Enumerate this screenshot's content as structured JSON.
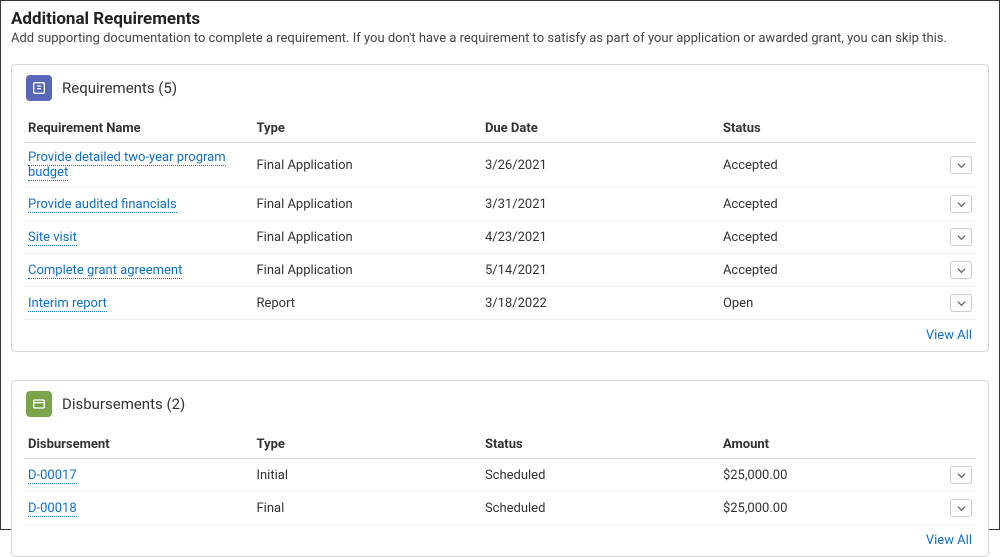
{
  "header": {
    "title": "Additional Requirements",
    "description": "Add supporting documentation to complete a requirement. If you don't have a requirement to satisfy as part of your application or awarded grant, you can skip this."
  },
  "requirements": {
    "title": "Requirements (5)",
    "columns": {
      "name": "Requirement Name",
      "type": "Type",
      "due": "Due Date",
      "status": "Status"
    },
    "rows": [
      {
        "name": "Provide detailed two-year program budget",
        "type": "Final Application",
        "due": "3/26/2021",
        "status": "Accepted"
      },
      {
        "name": "Provide audited financials",
        "type": "Final Application",
        "due": "3/31/2021",
        "status": "Accepted"
      },
      {
        "name": "Site visit",
        "type": "Final Application",
        "due": "4/23/2021",
        "status": "Accepted"
      },
      {
        "name": "Complete grant agreement",
        "type": "Final Application",
        "due": "5/14/2021",
        "status": "Accepted"
      },
      {
        "name": "Interim report",
        "type": "Report",
        "due": "3/18/2022",
        "status": "Open"
      }
    ],
    "view_all": "View All"
  },
  "disbursements": {
    "title": "Disbursements (2)",
    "columns": {
      "name": "Disbursement",
      "type": "Type",
      "status": "Status",
      "amount": "Amount"
    },
    "rows": [
      {
        "name": "D-00017",
        "type": "Initial",
        "status": "Scheduled",
        "amount": "$25,000.00"
      },
      {
        "name": "D-00018",
        "type": "Final",
        "status": "Scheduled",
        "amount": "$25,000.00"
      }
    ],
    "view_all": "View All"
  },
  "colors": {
    "link": "#0f6fc5",
    "req_icon_bg": "#5867b8",
    "disb_icon_bg": "#7aa34a",
    "border": "#d9d9d9"
  }
}
